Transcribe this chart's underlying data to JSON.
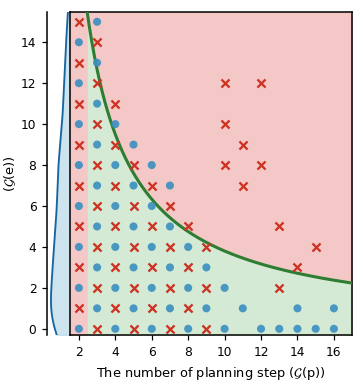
{
  "xlabel": "The number of planning step ($\\mathcal{G}$(p))",
  "ylabel": "The number of medical entity\n($\\mathcal{G}$(e))",
  "xlim": [
    1.5,
    17
  ],
  "ylim": [
    -0.3,
    15.5
  ],
  "xticks": [
    2,
    4,
    6,
    8,
    10,
    12,
    14,
    16
  ],
  "yticks": [
    0,
    2,
    4,
    6,
    8,
    10,
    12,
    14
  ],
  "hyperbola_k": 38,
  "green_region_color": "#d4ead4",
  "pink_region_color": "#f5c8c8",
  "curve_color": "#2e7d32",
  "dot_color": "#3a8fbf",
  "cross_color": "#cc3322",
  "dot_size": 28,
  "cross_size": 28,
  "dots": [
    [
      2,
      0
    ],
    [
      2,
      2
    ],
    [
      2,
      4
    ],
    [
      2,
      6
    ],
    [
      2,
      8
    ],
    [
      2,
      10
    ],
    [
      2,
      12
    ],
    [
      2,
      14
    ],
    [
      3,
      1
    ],
    [
      3,
      3
    ],
    [
      3,
      5
    ],
    [
      3,
      7
    ],
    [
      3,
      9
    ],
    [
      3,
      11
    ],
    [
      3,
      13
    ],
    [
      3,
      15
    ],
    [
      4,
      0
    ],
    [
      4,
      2
    ],
    [
      4,
      4
    ],
    [
      4,
      6
    ],
    [
      4,
      8
    ],
    [
      4,
      10
    ],
    [
      5,
      1
    ],
    [
      5,
      3
    ],
    [
      5,
      5
    ],
    [
      5,
      7
    ],
    [
      5,
      9
    ],
    [
      6,
      0
    ],
    [
      6,
      2
    ],
    [
      6,
      4
    ],
    [
      6,
      6
    ],
    [
      6,
      8
    ],
    [
      7,
      1
    ],
    [
      7,
      3
    ],
    [
      7,
      5
    ],
    [
      7,
      7
    ],
    [
      8,
      0
    ],
    [
      8,
      2
    ],
    [
      8,
      4
    ],
    [
      9,
      1
    ],
    [
      9,
      3
    ],
    [
      10,
      0
    ],
    [
      10,
      2
    ],
    [
      11,
      1
    ],
    [
      12,
      0
    ],
    [
      13,
      0
    ],
    [
      14,
      0
    ],
    [
      15,
      0
    ],
    [
      16,
      0
    ],
    [
      16,
      1
    ],
    [
      14,
      1
    ]
  ],
  "crosses": [
    [
      2,
      1
    ],
    [
      2,
      3
    ],
    [
      2,
      5
    ],
    [
      2,
      7
    ],
    [
      2,
      9
    ],
    [
      2,
      11
    ],
    [
      2,
      13
    ],
    [
      2,
      15
    ],
    [
      3,
      0
    ],
    [
      3,
      2
    ],
    [
      3,
      4
    ],
    [
      3,
      6
    ],
    [
      3,
      8
    ],
    [
      3,
      10
    ],
    [
      3,
      12
    ],
    [
      3,
      14
    ],
    [
      4,
      1
    ],
    [
      4,
      3
    ],
    [
      4,
      5
    ],
    [
      4,
      7
    ],
    [
      4,
      9
    ],
    [
      4,
      11
    ],
    [
      5,
      0
    ],
    [
      5,
      2
    ],
    [
      5,
      4
    ],
    [
      5,
      6
    ],
    [
      5,
      8
    ],
    [
      6,
      1
    ],
    [
      6,
      3
    ],
    [
      6,
      5
    ],
    [
      6,
      7
    ],
    [
      7,
      0
    ],
    [
      7,
      2
    ],
    [
      7,
      4
    ],
    [
      7,
      6
    ],
    [
      8,
      1
    ],
    [
      8,
      3
    ],
    [
      8,
      5
    ],
    [
      9,
      0
    ],
    [
      9,
      2
    ],
    [
      9,
      4
    ],
    [
      10,
      8
    ],
    [
      10,
      10
    ],
    [
      10,
      12
    ],
    [
      11,
      7
    ],
    [
      11,
      9
    ],
    [
      12,
      8
    ],
    [
      12,
      12
    ],
    [
      13,
      2
    ],
    [
      13,
      5
    ],
    [
      14,
      3
    ],
    [
      15,
      4
    ]
  ],
  "kde_color_fill": "#b8d8e8",
  "kde_color_line": "#1565a0",
  "figsize": [
    3.3,
    3.5
  ],
  "dpi": 110
}
